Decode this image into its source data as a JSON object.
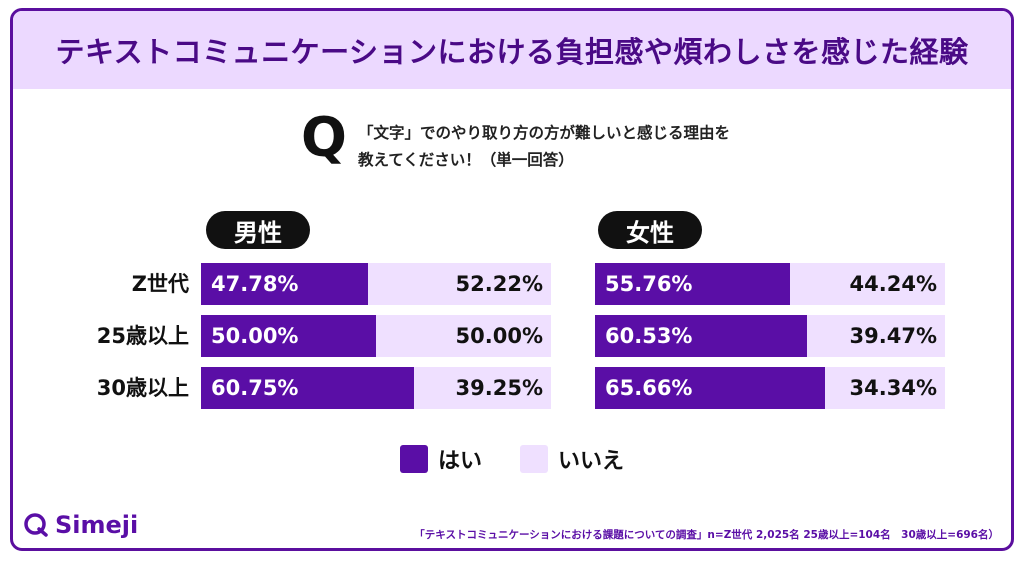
{
  "title": "テキストコミュニケーションにおける負担感や煩わしさを感じた経験",
  "question": {
    "mark": "Q",
    "line1": "「文字」でのやり取り方の方が難しいと感じる理由を",
    "line2": "教えてください！（単一回答）"
  },
  "colors": {
    "yes": "#5a0ea6",
    "no": "#efe0ff",
    "accent": "#ecd9ff"
  },
  "legend": {
    "yes": "はい",
    "no": "いいえ"
  },
  "brand": {
    "name": "Simeji",
    "icon": "simeji-q-logo-icon"
  },
  "footnote": "「テキストコミュニケーションにおける課題についての調査」n=Z世代 2,025名 25歳以上=104名　30歳以上=696名）",
  "chart_data": [
    {
      "type": "bar",
      "stacked": true,
      "orientation": "horizontal",
      "group": "男性",
      "categories": [
        "Z世代",
        "25歳以上",
        "30歳以上"
      ],
      "series": [
        {
          "name": "はい",
          "values": [
            47.78,
            50.0,
            60.75
          ],
          "labels": [
            "47.78%",
            "50.00%",
            "60.75%"
          ]
        },
        {
          "name": "いいえ",
          "values": [
            52.22,
            50.0,
            39.25
          ],
          "labels": [
            "52.22%",
            "50.00%",
            "39.25%"
          ]
        }
      ],
      "xlim": [
        0,
        100
      ]
    },
    {
      "type": "bar",
      "stacked": true,
      "orientation": "horizontal",
      "group": "女性",
      "categories": [
        "Z世代",
        "25歳以上",
        "30歳以上"
      ],
      "series": [
        {
          "name": "はい",
          "values": [
            55.76,
            60.53,
            65.66
          ],
          "labels": [
            "55.76%",
            "60.53%",
            "65.66%"
          ]
        },
        {
          "name": "いいえ",
          "values": [
            44.24,
            39.47,
            34.34
          ],
          "labels": [
            "44.24%",
            "39.47%",
            "34.34%"
          ]
        }
      ],
      "xlim": [
        0,
        100
      ]
    }
  ]
}
